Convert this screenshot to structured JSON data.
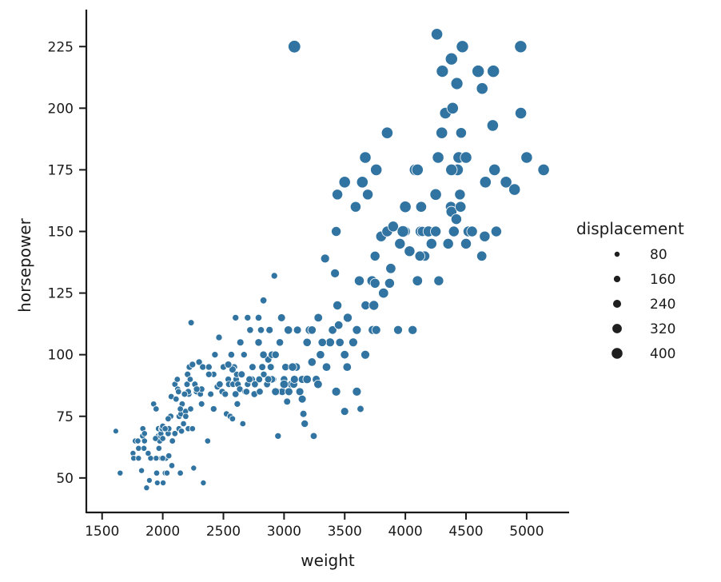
{
  "chart_data": {
    "type": "scatter",
    "xlabel": "weight",
    "ylabel": "horsepower",
    "xlim": [
      1370,
      5350
    ],
    "ylim": [
      36,
      240
    ],
    "xticks": [
      1500,
      2000,
      2500,
      3000,
      3500,
      4000,
      4500,
      5000
    ],
    "yticks": [
      50,
      75,
      100,
      125,
      150,
      175,
      200,
      225
    ],
    "point_color": "#3274a1",
    "legend": {
      "title": "displacement",
      "placement": "center-right",
      "entries": [
        {
          "label": "80",
          "value": 80
        },
        {
          "label": "160",
          "value": 160
        },
        {
          "label": "240",
          "value": 240
        },
        {
          "label": "320",
          "value": 320
        },
        {
          "label": "400",
          "value": 400
        }
      ]
    },
    "points": [
      [
        1613,
        69,
        70
      ],
      [
        1649,
        52,
        80
      ],
      [
        1755,
        60,
        79
      ],
      [
        1760,
        58,
        80
      ],
      [
        1773,
        65,
        85
      ],
      [
        1795,
        65,
        85
      ],
      [
        1800,
        58,
        79
      ],
      [
        1825,
        53,
        80
      ],
      [
        1834,
        67,
        90
      ],
      [
        1836,
        70,
        90
      ],
      [
        1845,
        62,
        85
      ],
      [
        1850,
        68,
        86
      ],
      [
        1867,
        46,
        79
      ],
      [
        1875,
        60,
        80
      ],
      [
        1890,
        49,
        72
      ],
      [
        1925,
        80,
        91
      ],
      [
        1945,
        78,
        97
      ],
      [
        1950,
        52,
        91
      ],
      [
        1955,
        48,
        68
      ],
      [
        1963,
        67,
        90
      ],
      [
        1965,
        70,
        97
      ],
      [
        1968,
        62,
        90
      ],
      [
        1975,
        65,
        90
      ],
      [
        1980,
        67,
        90
      ],
      [
        1985,
        68,
        90
      ],
      [
        1990,
        70,
        97
      ],
      [
        1995,
        70,
        97
      ],
      [
        2000,
        71,
        98
      ],
      [
        2000,
        66,
        90
      ],
      [
        2003,
        48,
        79
      ],
      [
        2020,
        52,
        80
      ],
      [
        2025,
        58,
        91
      ],
      [
        2035,
        52,
        85
      ],
      [
        2045,
        68,
        98
      ],
      [
        2050,
        70,
        98
      ],
      [
        2050,
        59,
        91
      ],
      [
        2065,
        75,
        108
      ],
      [
        2070,
        83,
        98
      ],
      [
        2075,
        55,
        91
      ],
      [
        2100,
        68,
        98
      ],
      [
        2100,
        88,
        97
      ],
      [
        2120,
        90,
        97
      ],
      [
        2123,
        86,
        97
      ],
      [
        2130,
        85,
        97
      ],
      [
        2134,
        70,
        91
      ],
      [
        2135,
        75,
        98
      ],
      [
        2145,
        52,
        91
      ],
      [
        2150,
        76,
        98
      ],
      [
        2155,
        69,
        91
      ],
      [
        2160,
        80,
        98
      ],
      [
        2171,
        72,
        91
      ],
      [
        2188,
        77,
        97
      ],
      [
        2190,
        75,
        98
      ],
      [
        2200,
        88,
        107
      ],
      [
        2205,
        92,
        116
      ],
      [
        2210,
        70,
        91
      ],
      [
        2215,
        84,
        107
      ],
      [
        2220,
        95,
        121
      ],
      [
        2226,
        90,
        97
      ],
      [
        2230,
        78,
        97
      ],
      [
        2234,
        113,
        104
      ],
      [
        2245,
        70,
        91
      ],
      [
        2255,
        54,
        80
      ],
      [
        2265,
        88,
        107
      ],
      [
        2278,
        85,
        108
      ],
      [
        2300,
        97,
        121
      ],
      [
        2310,
        84,
        97
      ],
      [
        2320,
        80,
        108
      ],
      [
        2330,
        95,
        120
      ],
      [
        2335,
        48,
        79
      ],
      [
        2370,
        65,
        89
      ],
      [
        2380,
        95,
        121
      ],
      [
        2395,
        84,
        107
      ],
      [
        2420,
        92,
        108
      ],
      [
        2430,
        100,
        121
      ],
      [
        2450,
        87,
        112
      ],
      [
        2464,
        107,
        121
      ],
      [
        2490,
        85,
        119
      ],
      [
        2500,
        95,
        121
      ],
      [
        2515,
        84,
        116
      ],
      [
        2525,
        76,
        97
      ],
      [
        2540,
        90,
        119
      ],
      [
        2545,
        88,
        120
      ],
      [
        2556,
        75,
        98
      ],
      [
        2565,
        100,
        134
      ],
      [
        2575,
        74,
        97
      ],
      [
        2580,
        88,
        119
      ],
      [
        2590,
        95,
        121
      ],
      [
        2600,
        115,
        121
      ],
      [
        2605,
        90,
        120
      ],
      [
        2610,
        92,
        113
      ],
      [
        2615,
        80,
        120
      ],
      [
        2620,
        88,
        119
      ],
      [
        2635,
        86,
        122
      ],
      [
        2640,
        105,
        156
      ],
      [
        2660,
        72,
        98
      ],
      [
        2670,
        100,
        121
      ],
      [
        2680,
        85,
        122
      ],
      [
        2690,
        85,
        134
      ],
      [
        2700,
        88,
        116
      ],
      [
        2700,
        115,
        121
      ],
      [
        2720,
        110,
        134
      ],
      [
        2735,
        90,
        140
      ],
      [
        2740,
        95,
        151
      ],
      [
        2755,
        84,
        134
      ],
      [
        2790,
        115,
        134
      ],
      [
        2795,
        90,
        140
      ],
      [
        2800,
        85,
        140
      ],
      [
        2810,
        110,
        134
      ],
      [
        2820,
        95,
        151
      ],
      [
        2830,
        122,
        140
      ],
      [
        2833,
        92,
        122
      ],
      [
        2860,
        88,
        140
      ],
      [
        2870,
        98,
        151
      ],
      [
        2880,
        110,
        156
      ],
      [
        2890,
        95,
        151
      ],
      [
        2900,
        100,
        173
      ],
      [
        2910,
        90,
        151
      ],
      [
        2920,
        132,
        121
      ],
      [
        2930,
        100,
        173
      ],
      [
        2945,
        85,
        171
      ],
      [
        2950,
        67,
        120
      ],
      [
        2965,
        105,
        173
      ],
      [
        2979,
        115,
        198
      ],
      [
        2985,
        85,
        181
      ],
      [
        3000,
        90,
        171
      ],
      [
        3012,
        95,
        173
      ],
      [
        3025,
        81,
        146
      ],
      [
        3035,
        110,
        225
      ],
      [
        3060,
        88,
        199
      ],
      [
        3080,
        88,
        200
      ],
      [
        3105,
        95,
        225
      ],
      [
        3110,
        110,
        199
      ],
      [
        3130,
        85,
        200
      ],
      [
        3150,
        90,
        199
      ],
      [
        3160,
        76,
        151
      ],
      [
        3170,
        72,
        168
      ],
      [
        3190,
        105,
        225
      ],
      [
        3210,
        110,
        231
      ],
      [
        3230,
        110,
        225
      ],
      [
        3245,
        67,
        141
      ],
      [
        3265,
        90,
        200
      ],
      [
        3282,
        115,
        231
      ],
      [
        3300,
        100,
        225
      ],
      [
        3338,
        139,
        250
      ],
      [
        3375,
        105,
        225
      ],
      [
        3400,
        110,
        232
      ],
      [
        3420,
        133,
        250
      ],
      [
        3430,
        150,
        302
      ],
      [
        3440,
        120,
        260
      ],
      [
        3450,
        112,
        232
      ],
      [
        3465,
        105,
        225
      ],
      [
        3500,
        100,
        232
      ],
      [
        3525,
        115,
        258
      ],
      [
        3570,
        105,
        250
      ],
      [
        3600,
        110,
        250
      ],
      [
        3620,
        130,
        305
      ],
      [
        3630,
        78,
        145
      ],
      [
        3645,
        170,
        400
      ],
      [
        3672,
        120,
        258
      ],
      [
        3690,
        165,
        350
      ],
      [
        3725,
        130,
        318
      ],
      [
        3730,
        110,
        250
      ],
      [
        3750,
        140,
        302
      ],
      [
        3760,
        110,
        250
      ],
      [
        3800,
        148,
        350
      ],
      [
        3820,
        125,
        318
      ],
      [
        3850,
        150,
        350
      ],
      [
        3870,
        129,
        302
      ],
      [
        3900,
        152,
        351
      ],
      [
        3940,
        110,
        250
      ],
      [
        3955,
        145,
        350
      ],
      [
        4000,
        150,
        318
      ],
      [
        4035,
        142,
        350
      ],
      [
        4060,
        110,
        258
      ],
      [
        4080,
        175,
        400
      ],
      [
        4100,
        130,
        318
      ],
      [
        4125,
        150,
        350
      ],
      [
        4140,
        150,
        318
      ],
      [
        4160,
        140,
        318
      ],
      [
        4190,
        150,
        360
      ],
      [
        4215,
        145,
        350
      ],
      [
        4250,
        150,
        350
      ],
      [
        4260,
        230,
        400
      ],
      [
        4300,
        190,
        400
      ],
      [
        4330,
        198,
        400
      ],
      [
        4353,
        145,
        350
      ],
      [
        4375,
        160,
        360
      ],
      [
        4380,
        158,
        360
      ],
      [
        4400,
        150,
        350
      ],
      [
        4430,
        175,
        400
      ],
      [
        4450,
        165,
        350
      ],
      [
        4460,
        190,
        350
      ],
      [
        4470,
        225,
        440
      ],
      [
        4500,
        145,
        350
      ],
      [
        4520,
        150,
        350
      ],
      [
        4550,
        150,
        350
      ],
      [
        4600,
        215,
        440
      ],
      [
        4630,
        140,
        318
      ],
      [
        4633,
        208,
        400
      ],
      [
        4654,
        148,
        350
      ],
      [
        4660,
        170,
        400
      ],
      [
        4720,
        193,
        400
      ],
      [
        4735,
        175,
        400
      ],
      [
        4750,
        150,
        350
      ],
      [
        4830,
        170,
        400
      ],
      [
        4900,
        167,
        400
      ],
      [
        4951,
        225,
        440
      ],
      [
        4952,
        198,
        400
      ],
      [
        5000,
        180,
        400
      ],
      [
        5140,
        175,
        400
      ],
      [
        3085,
        225,
        455
      ],
      [
        4305,
        215,
        429
      ],
      [
        4380,
        220,
        440
      ],
      [
        4100,
        175,
        400
      ],
      [
        4270,
        180,
        400
      ],
      [
        4390,
        200,
        400
      ],
      [
        4425,
        210,
        429
      ],
      [
        4440,
        180,
        400
      ],
      [
        4380,
        175,
        400
      ],
      [
        4250,
        165,
        400
      ],
      [
        4000,
        160,
        400
      ],
      [
        3850,
        190,
        400
      ],
      [
        3670,
        180,
        400
      ],
      [
        3500,
        170,
        400
      ],
      [
        3760,
        175,
        400
      ],
      [
        3440,
        165,
        350
      ],
      [
        3590,
        160,
        350
      ],
      [
        3980,
        150,
        400
      ],
      [
        4130,
        160,
        360
      ],
      [
        4420,
        155,
        350
      ],
      [
        4500,
        180,
        400
      ],
      [
        4725,
        215,
        440
      ],
      [
        4660,
        170,
        400
      ],
      [
        4455,
        160,
        360
      ],
      [
        4275,
        130,
        302
      ],
      [
        4120,
        140,
        318
      ],
      [
        3880,
        135,
        318
      ],
      [
        3750,
        129,
        302
      ],
      [
        3740,
        120,
        302
      ],
      [
        3670,
        100,
        250
      ],
      [
        3600,
        85,
        250
      ],
      [
        3520,
        95,
        231
      ],
      [
        3500,
        77,
        200
      ],
      [
        3460,
        105,
        225
      ],
      [
        3430,
        85,
        250
      ],
      [
        3380,
        105,
        250
      ],
      [
        3350,
        95,
        231
      ],
      [
        3315,
        105,
        225
      ],
      [
        3280,
        88,
        232
      ],
      [
        3230,
        97,
        225
      ],
      [
        3190,
        90,
        231
      ],
      [
        3150,
        82,
        200
      ],
      [
        3100,
        95,
        231
      ],
      [
        3085,
        90,
        200
      ],
      [
        3070,
        95,
        225
      ],
      [
        3040,
        85,
        200
      ],
      [
        3000,
        88,
        231
      ],
      [
        2930,
        85,
        200
      ],
      [
        2900,
        90,
        171
      ],
      [
        2870,
        90,
        156
      ],
      [
        2830,
        100,
        173
      ],
      [
        2790,
        105,
        173
      ],
      [
        2760,
        88,
        140
      ],
      [
        2715,
        90,
        151
      ],
      [
        2650,
        92,
        151
      ],
      [
        2600,
        84,
        140
      ],
      [
        2575,
        94,
        151
      ],
      [
        2540,
        96,
        151
      ],
      [
        2470,
        88,
        140
      ],
      [
        2420,
        78,
        119
      ],
      [
        2380,
        92,
        120
      ],
      [
        2320,
        86,
        119
      ],
      [
        2280,
        86,
        122
      ],
      [
        2245,
        96,
        121
      ],
      [
        2210,
        85,
        113
      ],
      [
        2180,
        84,
        108
      ],
      [
        2145,
        78,
        98
      ],
      [
        2110,
        82,
        97
      ],
      [
        2080,
        65,
        98
      ],
      [
        2045,
        74,
        98
      ],
      [
        2020,
        70,
        91
      ],
      [
        1990,
        58,
        91
      ],
      [
        1945,
        58,
        79
      ],
      [
        1900,
        58,
        80
      ],
      [
        1850,
        65,
        86
      ],
      [
        1800,
        62,
        85
      ],
      [
        1880,
        60,
        85
      ],
      [
        1940,
        66,
        89
      ],
      [
        2000,
        58,
        91
      ]
    ]
  }
}
